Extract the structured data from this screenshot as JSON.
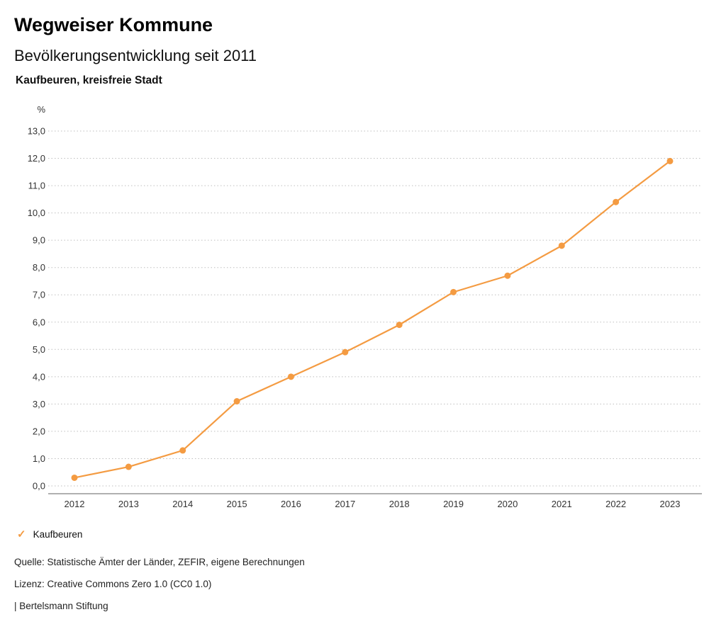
{
  "header": {
    "brand": "Wegweiser Kommune",
    "title": "Bevölkerungsentwicklung seit 2011",
    "subtitle": "Kaufbeuren, kreisfreie Stadt"
  },
  "chart_data": {
    "type": "line",
    "title": "Bevölkerungsentwicklung seit 2011",
    "subtitle": "Kaufbeuren, kreisfreie Stadt",
    "unit_label": "%",
    "x": [
      "2012",
      "2013",
      "2014",
      "2015",
      "2016",
      "2017",
      "2018",
      "2019",
      "2020",
      "2021",
      "2022",
      "2023"
    ],
    "series": [
      {
        "name": "Kaufbeuren",
        "color": "#f49b42",
        "values": [
          0.3,
          0.7,
          1.3,
          3.1,
          4.0,
          4.9,
          5.9,
          7.1,
          7.7,
          8.8,
          10.4,
          11.9
        ]
      }
    ],
    "ylim": [
      0,
      13
    ],
    "ytick_step": 1,
    "ytick_labels": [
      "0,0",
      "1,0",
      "2,0",
      "3,0",
      "4,0",
      "5,0",
      "6,0",
      "7,0",
      "8,0",
      "9,0",
      "10,0",
      "11,0",
      "12,0",
      "13,0"
    ],
    "grid": "dotted-horizontal",
    "legend_position": "bottom-left"
  },
  "legend": {
    "marker": "check",
    "label": "Kaufbeuren",
    "color": "#f49b42"
  },
  "footer": {
    "source": "Quelle: Statistische Ämter der Länder, ZEFIR, eigene Berechnungen",
    "license": "Lizenz: Creative Commons Zero 1.0 (CC0 1.0)",
    "attribution": "| Bertelsmann Stiftung"
  }
}
